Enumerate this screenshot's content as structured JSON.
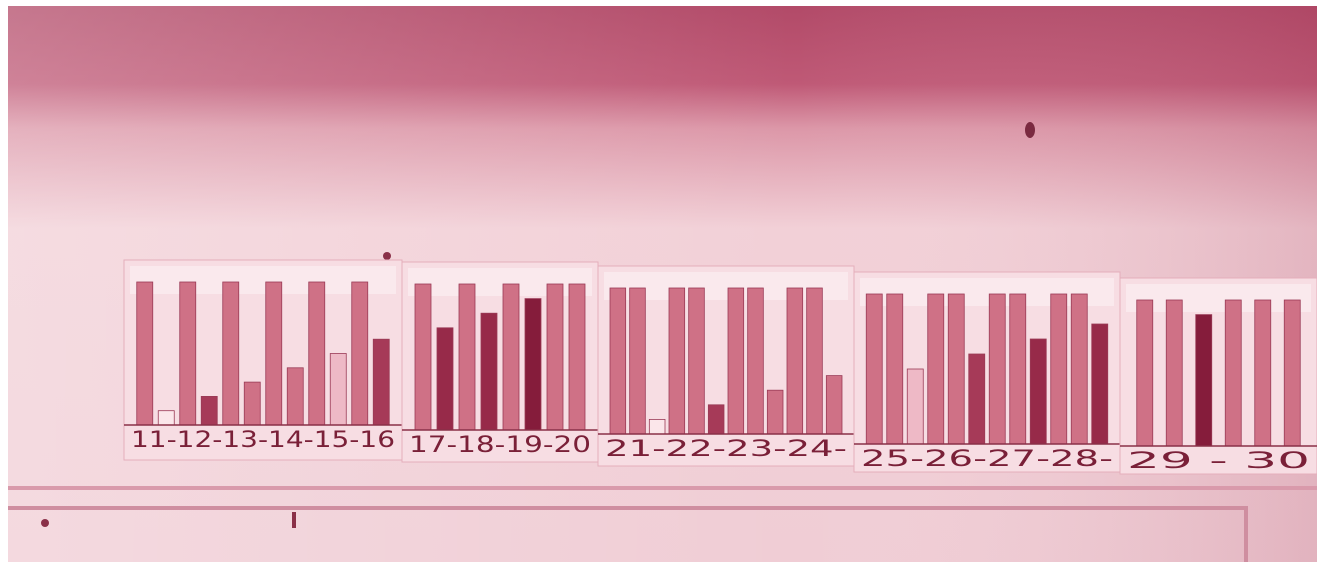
{
  "photo": {
    "subject": "photo of hand-made bar-chart strips taped to a wall",
    "tint": "#c25a76",
    "panels": [
      {
        "label": "11-12-13-14-15-16",
        "bars": [
          {
            "level": 1.0,
            "tone": "mid"
          },
          {
            "level": 0.1,
            "tone": "blank"
          },
          {
            "level": 1.0,
            "tone": "mid"
          },
          {
            "level": 0.2,
            "tone": "dark"
          },
          {
            "level": 1.0,
            "tone": "mid"
          },
          {
            "level": 0.3,
            "tone": "mid"
          },
          {
            "level": 1.0,
            "tone": "mid"
          },
          {
            "level": 0.4,
            "tone": "mid"
          },
          {
            "level": 1.0,
            "tone": "mid"
          },
          {
            "level": 0.5,
            "tone": "light"
          },
          {
            "level": 1.0,
            "tone": "mid"
          },
          {
            "level": 0.6,
            "tone": "dark"
          }
        ]
      },
      {
        "label": "17-18-19-20",
        "bars": [
          {
            "level": 1.0,
            "tone": "mid"
          },
          {
            "level": 0.7,
            "tone": "darker"
          },
          {
            "level": 1.0,
            "tone": "mid"
          },
          {
            "level": 0.8,
            "tone": "darker"
          },
          {
            "level": 1.0,
            "tone": "mid"
          },
          {
            "level": 0.9,
            "tone": "darkest"
          },
          {
            "level": 1.0,
            "tone": "mid"
          },
          {
            "level": 1.0,
            "tone": "mid"
          }
        ]
      },
      {
        "label": "21-22-23-24-",
        "bars": [
          {
            "level": 1.0,
            "tone": "mid"
          },
          {
            "level": 1.0,
            "tone": "mid"
          },
          {
            "level": 0.1,
            "tone": "blank"
          },
          {
            "level": 1.0,
            "tone": "mid"
          },
          {
            "level": 1.0,
            "tone": "mid"
          },
          {
            "level": 0.2,
            "tone": "dark"
          },
          {
            "level": 1.0,
            "tone": "mid"
          },
          {
            "level": 1.0,
            "tone": "mid"
          },
          {
            "level": 0.3,
            "tone": "mid"
          },
          {
            "level": 1.0,
            "tone": "mid"
          },
          {
            "level": 1.0,
            "tone": "mid"
          },
          {
            "level": 0.4,
            "tone": "mid"
          }
        ]
      },
      {
        "label": "25-26-27-28-",
        "bars": [
          {
            "level": 1.0,
            "tone": "mid"
          },
          {
            "level": 1.0,
            "tone": "mid"
          },
          {
            "level": 0.5,
            "tone": "light"
          },
          {
            "level": 1.0,
            "tone": "mid"
          },
          {
            "level": 1.0,
            "tone": "mid"
          },
          {
            "level": 0.6,
            "tone": "dark"
          },
          {
            "level": 1.0,
            "tone": "mid"
          },
          {
            "level": 1.0,
            "tone": "mid"
          },
          {
            "level": 0.7,
            "tone": "darker"
          },
          {
            "level": 1.0,
            "tone": "mid"
          },
          {
            "level": 1.0,
            "tone": "mid"
          },
          {
            "level": 0.8,
            "tone": "darker"
          }
        ]
      },
      {
        "label": "29 - 30",
        "bars": [
          {
            "level": 1.0,
            "tone": "mid"
          },
          {
            "level": 1.0,
            "tone": "mid"
          },
          {
            "level": 0.9,
            "tone": "darkest"
          },
          {
            "level": 1.0,
            "tone": "mid"
          },
          {
            "level": 1.0,
            "tone": "mid"
          },
          {
            "level": 1.0,
            "tone": "mid"
          }
        ]
      }
    ]
  }
}
